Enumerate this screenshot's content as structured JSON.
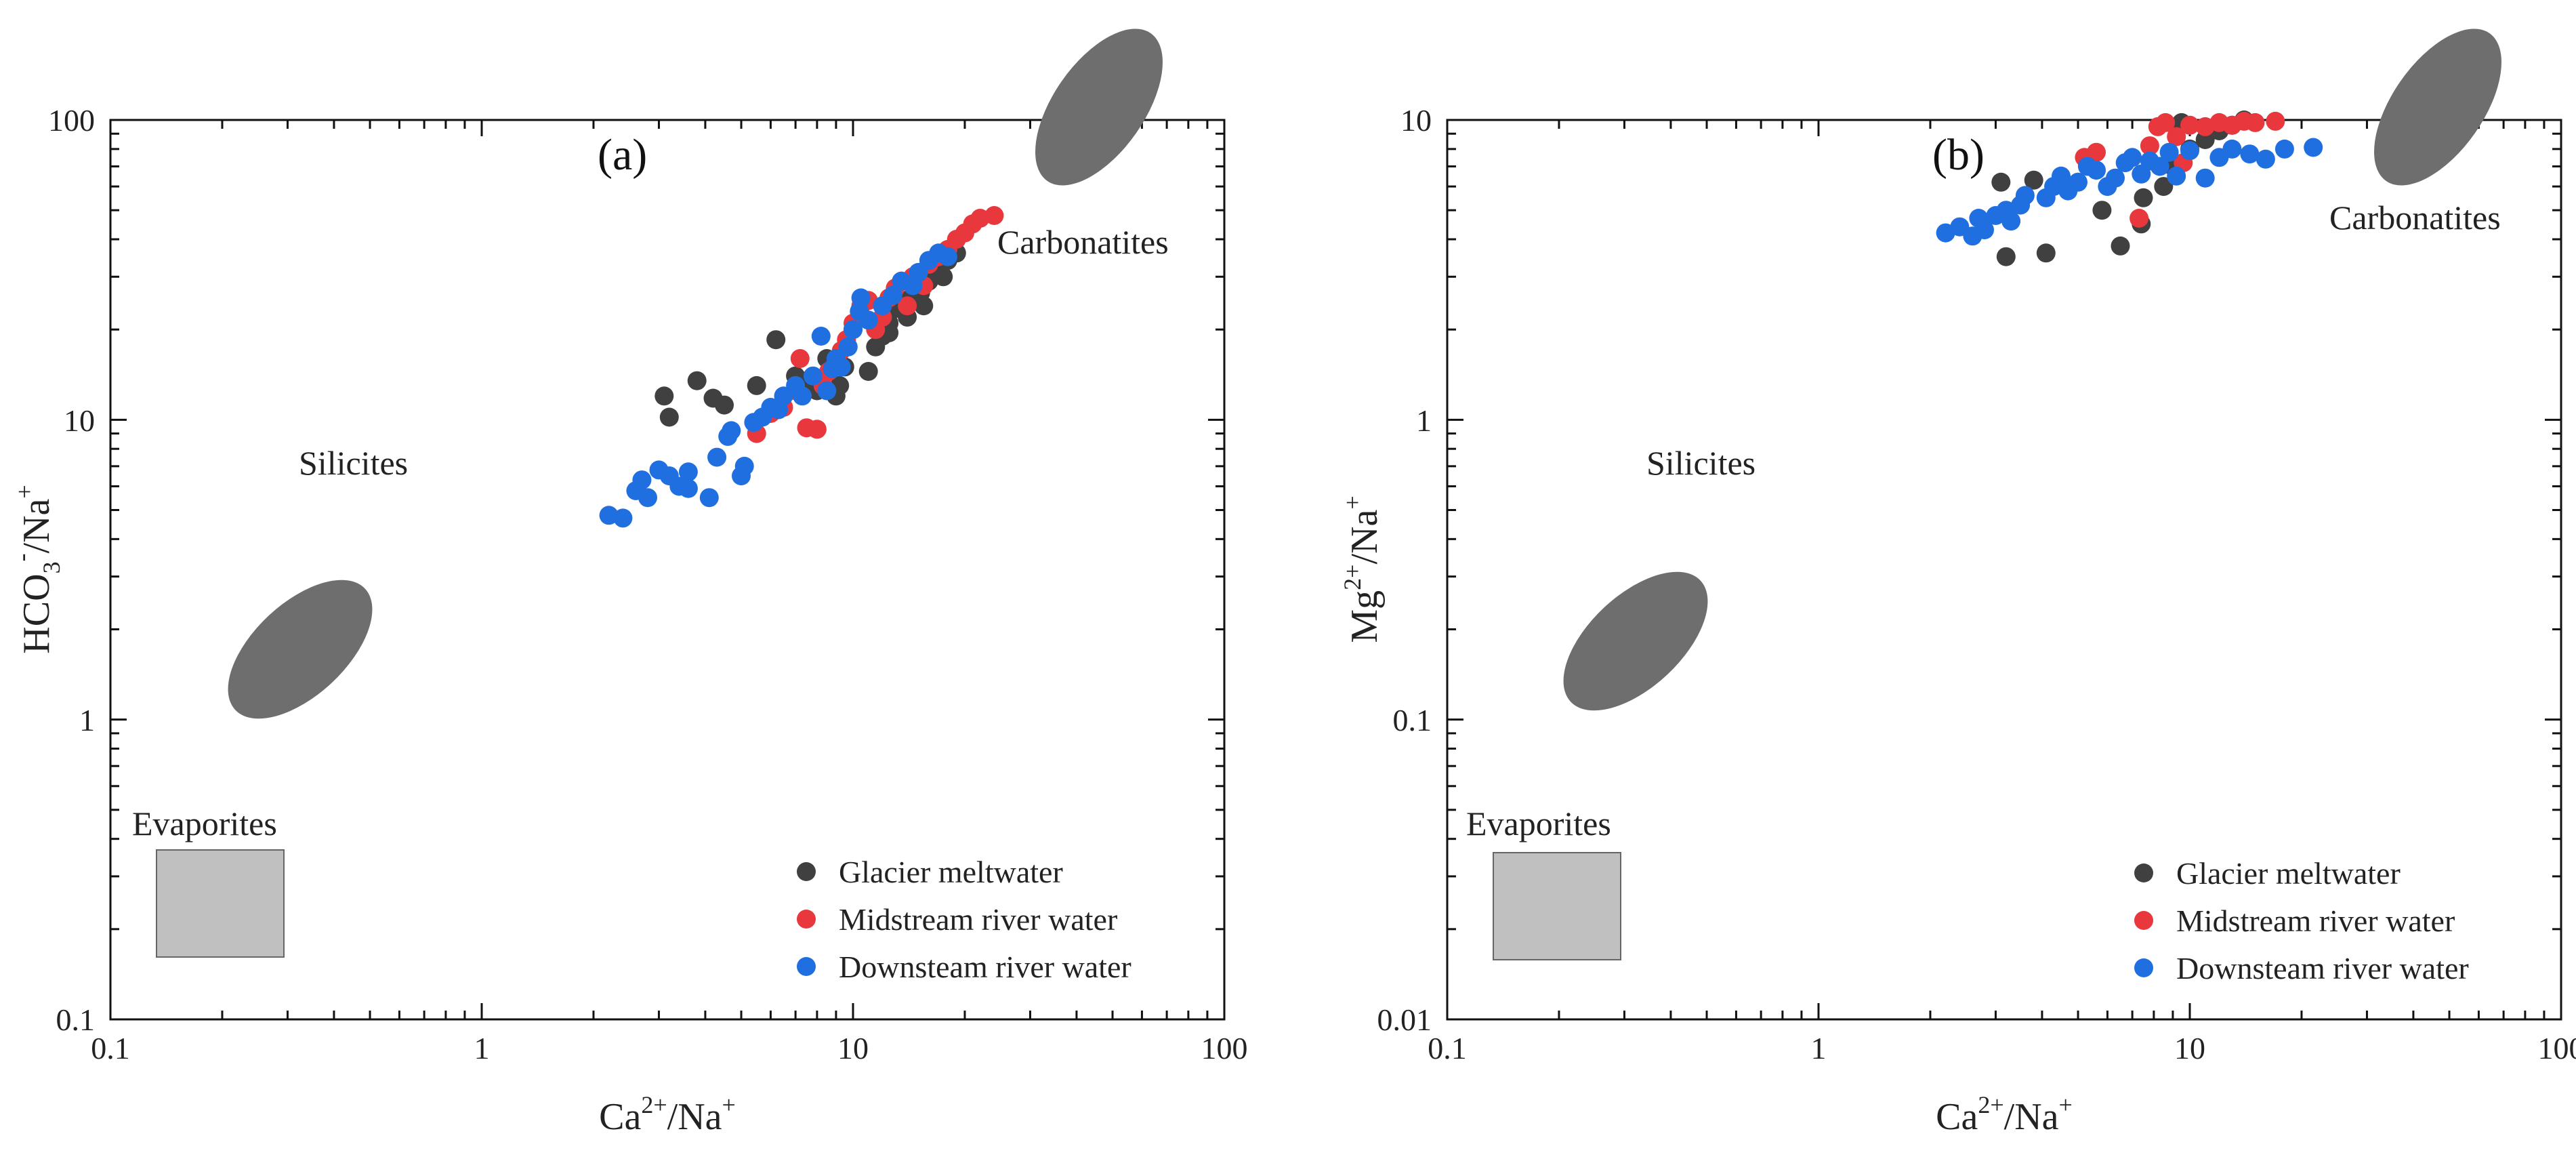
{
  "colors": {
    "glacier": "#404040",
    "midstream": "#e8383d",
    "downstream": "#1f6fe0",
    "ellipse": "#6e6e6e",
    "evaporite_box": "#c0c0c0"
  },
  "chart_data": [
    {
      "type": "scatter",
      "panel_label": "(a)",
      "xlabel": "Ca2+/Na+",
      "ylabel": "HCO3-/Na+",
      "xscale": "log",
      "yscale": "log",
      "xlim": [
        0.1,
        100
      ],
      "ylim": [
        0.1,
        100
      ],
      "x_tick_labels": [
        "0.1",
        "1",
        "10",
        "100"
      ],
      "y_tick_labels": [
        "0.1",
        "1",
        "10",
        "100"
      ],
      "region_labels": {
        "silicates": "Silicites",
        "carbonates": "Carbonatites",
        "evaporites": "Evaporites"
      },
      "legend": [
        "Glacier meltwater",
        "Midstream river water",
        "Downsteam river water"
      ],
      "series": [
        {
          "name": "Glacier meltwater",
          "color_key": "glacier",
          "points": [
            [
              3.1,
              12.0
            ],
            [
              3.2,
              10.2
            ],
            [
              3.8,
              13.5
            ],
            [
              4.2,
              11.8
            ],
            [
              4.5,
              11.2
            ],
            [
              5.5,
              13.0
            ],
            [
              6.2,
              18.5
            ],
            [
              7.0,
              14.0
            ],
            [
              7.5,
              13.5
            ],
            [
              8.0,
              12.5
            ],
            [
              8.5,
              16.0
            ],
            [
              9.0,
              12.0
            ],
            [
              9.2,
              13.0
            ],
            [
              9.5,
              15.0
            ],
            [
              10.0,
              20.0
            ],
            [
              10.5,
              22.0
            ],
            [
              11.0,
              14.5
            ],
            [
              11.5,
              17.5
            ],
            [
              12.0,
              19.0
            ],
            [
              12.5,
              21.0
            ],
            [
              13.0,
              23.5
            ],
            [
              13.5,
              25.0
            ],
            [
              14.0,
              22.0
            ],
            [
              14.5,
              26.0
            ],
            [
              15.0,
              27.0
            ],
            [
              15.5,
              24.0
            ],
            [
              16.0,
              29.0
            ],
            [
              17.0,
              32.0
            ],
            [
              17.5,
              30.0
            ],
            [
              18.0,
              34.0
            ],
            [
              19.0,
              36.0
            ],
            [
              12.5,
              19.5
            ],
            [
              15.2,
              26.5
            ]
          ]
        },
        {
          "name": "Midstream river water",
          "color_key": "midstream",
          "points": [
            [
              5.5,
              9.0
            ],
            [
              6.0,
              10.5
            ],
            [
              6.5,
              11.0
            ],
            [
              7.0,
              12.5
            ],
            [
              7.2,
              16.0
            ],
            [
              7.5,
              9.4
            ],
            [
              8.0,
              9.3
            ],
            [
              8.3,
              13.0
            ],
            [
              8.6,
              14.5
            ],
            [
              9.0,
              15.5
            ],
            [
              9.3,
              17.0
            ],
            [
              9.6,
              18.5
            ],
            [
              10.0,
              21.0
            ],
            [
              10.5,
              24.0
            ],
            [
              11.0,
              25.0
            ],
            [
              11.5,
              20.0
            ],
            [
              12.0,
              22.0
            ],
            [
              12.5,
              25.5
            ],
            [
              13.0,
              27.5
            ],
            [
              13.5,
              29.0
            ],
            [
              14.0,
              24.0
            ],
            [
              14.5,
              30.0
            ],
            [
              15.0,
              31.0
            ],
            [
              15.5,
              28.0
            ],
            [
              16.0,
              33.0
            ],
            [
              17.0,
              35.0
            ],
            [
              18.0,
              37.0
            ],
            [
              19.0,
              40.0
            ],
            [
              20.0,
              42.0
            ],
            [
              21.0,
              45.0
            ],
            [
              22.0,
              47.0
            ],
            [
              24.0,
              48.0
            ]
          ]
        },
        {
          "name": "Downsteam river water",
          "color_key": "downstream",
          "points": [
            [
              2.2,
              4.8
            ],
            [
              2.4,
              4.7
            ],
            [
              2.6,
              5.8
            ],
            [
              2.7,
              6.3
            ],
            [
              2.8,
              5.5
            ],
            [
              3.0,
              6.8
            ],
            [
              3.2,
              6.5
            ],
            [
              3.4,
              6.0
            ],
            [
              3.6,
              6.7
            ],
            [
              3.6,
              5.9
            ],
            [
              4.1,
              5.5
            ],
            [
              4.3,
              7.5
            ],
            [
              4.6,
              8.8
            ],
            [
              4.7,
              9.2
            ],
            [
              5.0,
              6.5
            ],
            [
              5.1,
              7.0
            ],
            [
              5.4,
              9.8
            ],
            [
              5.7,
              10.2
            ],
            [
              6.0,
              11.0
            ],
            [
              6.3,
              10.8
            ],
            [
              6.5,
              12.0
            ],
            [
              7.0,
              13.0
            ],
            [
              7.3,
              12.0
            ],
            [
              7.8,
              14.0
            ],
            [
              8.2,
              19.0
            ],
            [
              8.5,
              12.5
            ],
            [
              8.8,
              14.8
            ],
            [
              9.0,
              16.0
            ],
            [
              9.3,
              15.0
            ],
            [
              9.7,
              17.5
            ],
            [
              10.0,
              20.0
            ],
            [
              10.4,
              23.0
            ],
            [
              11.0,
              21.5
            ],
            [
              12.0,
              24.0
            ],
            [
              12.8,
              26.0
            ],
            [
              13.5,
              29.0
            ],
            [
              14.5,
              28.0
            ],
            [
              15.0,
              31.0
            ],
            [
              16.0,
              34.0
            ],
            [
              17.0,
              36.0
            ],
            [
              18.0,
              35.0
            ],
            [
              10.5,
              25.5
            ]
          ]
        }
      ]
    },
    {
      "type": "scatter",
      "panel_label": "(b)",
      "xlabel": "Ca2+/Na+",
      "ylabel": "Mg2+/Na+",
      "xscale": "log",
      "yscale": "log",
      "xlim": [
        0.1,
        100
      ],
      "ylim": [
        0.01,
        10
      ],
      "x_tick_labels": [
        "0.1",
        "1",
        "10",
        "100"
      ],
      "y_tick_labels": [
        "0.01",
        "0.1",
        "1",
        "10"
      ],
      "region_labels": {
        "silicates": "Silicites",
        "carbonates": "Carbonatites",
        "evaporites": "Evaporites"
      },
      "legend": [
        "Glacier meltwater",
        "Midstream river water",
        "Downsteam river water"
      ],
      "series": [
        {
          "name": "Glacier meltwater",
          "color_key": "glacier",
          "points": [
            [
              3.2,
              3.5
            ],
            [
              4.1,
              3.6
            ],
            [
              6.5,
              3.8
            ],
            [
              7.4,
              4.5
            ],
            [
              3.1,
              6.2
            ],
            [
              3.8,
              6.3
            ],
            [
              5.8,
              5.0
            ],
            [
              7.5,
              5.5
            ],
            [
              8.5,
              6.0
            ],
            [
              9.0,
              7.0
            ],
            [
              10.0,
              8.0
            ],
            [
              11.0,
              8.6
            ],
            [
              12.0,
              9.2
            ],
            [
              13.0,
              9.6
            ],
            [
              9.5,
              9.8
            ],
            [
              14.0,
              10.0
            ]
          ]
        },
        {
          "name": "Midstream river water",
          "color_key": "midstream",
          "points": [
            [
              5.2,
              7.5
            ],
            [
              5.6,
              7.8
            ],
            [
              7.3,
              4.7
            ],
            [
              7.8,
              8.2
            ],
            [
              8.2,
              9.5
            ],
            [
              8.6,
              9.8
            ],
            [
              9.2,
              8.8
            ],
            [
              10.0,
              9.6
            ],
            [
              11.0,
              9.5
            ],
            [
              12.0,
              9.8
            ],
            [
              13.0,
              9.6
            ],
            [
              14.0,
              9.9
            ],
            [
              15.0,
              9.8
            ],
            [
              17.0,
              9.9
            ],
            [
              9.6,
              7.2
            ]
          ]
        },
        {
          "name": "Downsteam river water",
          "color_key": "downstream",
          "points": [
            [
              2.2,
              4.2
            ],
            [
              2.4,
              4.4
            ],
            [
              2.6,
              4.1
            ],
            [
              2.7,
              4.7
            ],
            [
              2.8,
              4.3
            ],
            [
              3.0,
              4.8
            ],
            [
              3.2,
              5.0
            ],
            [
              3.3,
              4.6
            ],
            [
              3.5,
              5.2
            ],
            [
              3.6,
              5.6
            ],
            [
              4.1,
              5.5
            ],
            [
              4.3,
              6.0
            ],
            [
              4.5,
              6.5
            ],
            [
              4.7,
              5.8
            ],
            [
              5.0,
              6.2
            ],
            [
              5.3,
              7.0
            ],
            [
              5.6,
              6.8
            ],
            [
              6.0,
              6.0
            ],
            [
              6.3,
              6.4
            ],
            [
              6.7,
              7.2
            ],
            [
              7.0,
              7.5
            ],
            [
              7.4,
              6.6
            ],
            [
              7.8,
              7.3
            ],
            [
              8.3,
              7.0
            ],
            [
              8.8,
              7.8
            ],
            [
              9.2,
              6.5
            ],
            [
              10.0,
              7.9
            ],
            [
              11.0,
              6.4
            ],
            [
              12.0,
              7.5
            ],
            [
              13.0,
              8.0
            ],
            [
              14.5,
              7.7
            ],
            [
              16.0,
              7.4
            ],
            [
              18.0,
              8.0
            ],
            [
              21.5,
              8.1
            ]
          ]
        }
      ]
    }
  ]
}
